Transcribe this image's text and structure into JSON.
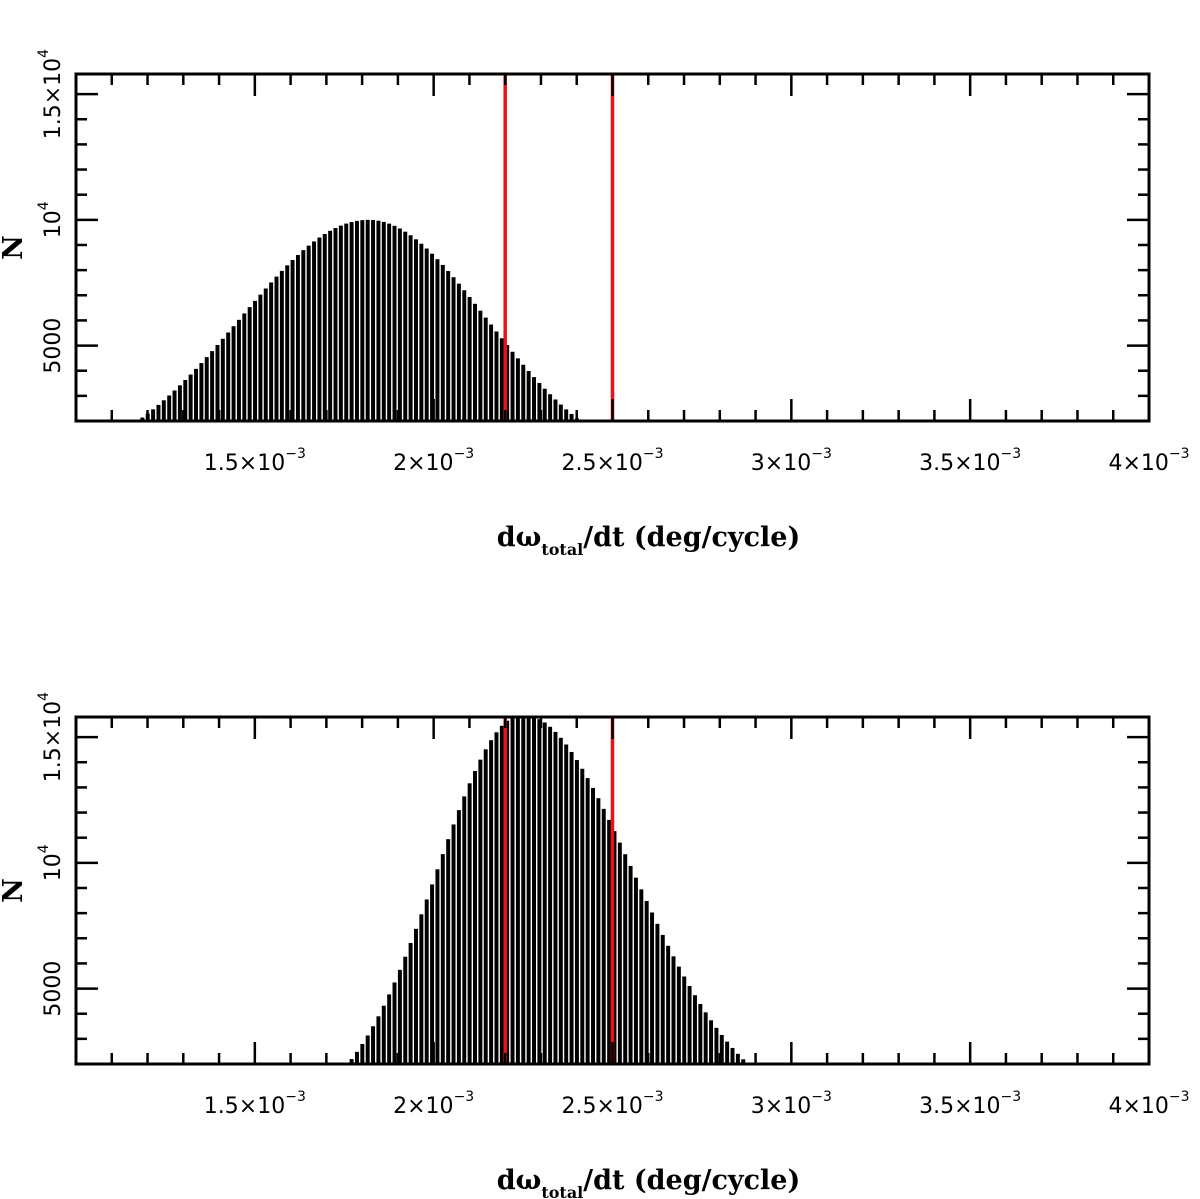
{
  "chart_data": [
    {
      "type": "histogram",
      "xlabel": {
        "main": "dω",
        "sub": "total",
        "rest": "/dt (deg/cycle)"
      },
      "ylabel": "N",
      "xlim": [
        0.001,
        0.004
      ],
      "ylim": [
        2000,
        15800
      ],
      "x_ticks": [
        {
          "value": 0.0015,
          "mantissa": "1.5×10",
          "exponent": "−3"
        },
        {
          "value": 0.002,
          "mantissa": "2×10",
          "exponent": "−3"
        },
        {
          "value": 0.0025,
          "mantissa": "2.5×10",
          "exponent": "−3"
        },
        {
          "value": 0.003,
          "mantissa": "3×10",
          "exponent": "−3"
        },
        {
          "value": 0.0035,
          "mantissa": "3.5×10",
          "exponent": "−3"
        },
        {
          "value": 0.004,
          "mantissa": "4×10",
          "exponent": "−3"
        }
      ],
      "y_ticks": [
        {
          "value": 5000,
          "mantissa": "5000",
          "exponent": ""
        },
        {
          "value": 10000,
          "mantissa": "10",
          "exponent": "4"
        },
        {
          "value": 15000,
          "mantissa": "1.5×10",
          "exponent": "4"
        }
      ],
      "vlines": [
        0.0022,
        0.0025
      ],
      "vline_color": "#e8121a",
      "bar_color": "#000000",
      "distribution": {
        "center": 0.00182,
        "peak": 10000,
        "sigma_left": 0.00036,
        "sigma_right": 0.00033,
        "min_count": 2000
      }
    },
    {
      "type": "histogram",
      "xlabel": {
        "main": "dω",
        "sub": "total",
        "rest": "/dt (deg/cycle)"
      },
      "ylabel": "N",
      "xlim": [
        0.001,
        0.004
      ],
      "ylim": [
        2000,
        15800
      ],
      "x_ticks": [
        {
          "value": 0.0015,
          "mantissa": "1.5×10",
          "exponent": "−3"
        },
        {
          "value": 0.002,
          "mantissa": "2×10",
          "exponent": "−3"
        },
        {
          "value": 0.0025,
          "mantissa": "2.5×10",
          "exponent": "−3"
        },
        {
          "value": 0.003,
          "mantissa": "3×10",
          "exponent": "−3"
        },
        {
          "value": 0.0035,
          "mantissa": "3.5×10",
          "exponent": "−3"
        },
        {
          "value": 0.004,
          "mantissa": "4×10",
          "exponent": "−3"
        }
      ],
      "y_ticks": [
        {
          "value": 5000,
          "mantissa": "5000",
          "exponent": ""
        },
        {
          "value": 10000,
          "mantissa": "10",
          "exponent": "4"
        },
        {
          "value": 15000,
          "mantissa": "1.5×10",
          "exponent": "4"
        }
      ],
      "vlines": [
        0.0022,
        0.0025
      ],
      "vline_color": "#e8121a",
      "bar_color": "#000000",
      "distribution": {
        "center": 0.00225,
        "peak": 15900,
        "sigma_left": 0.00024,
        "sigma_right": 0.00031,
        "min_count": 2000
      }
    }
  ]
}
